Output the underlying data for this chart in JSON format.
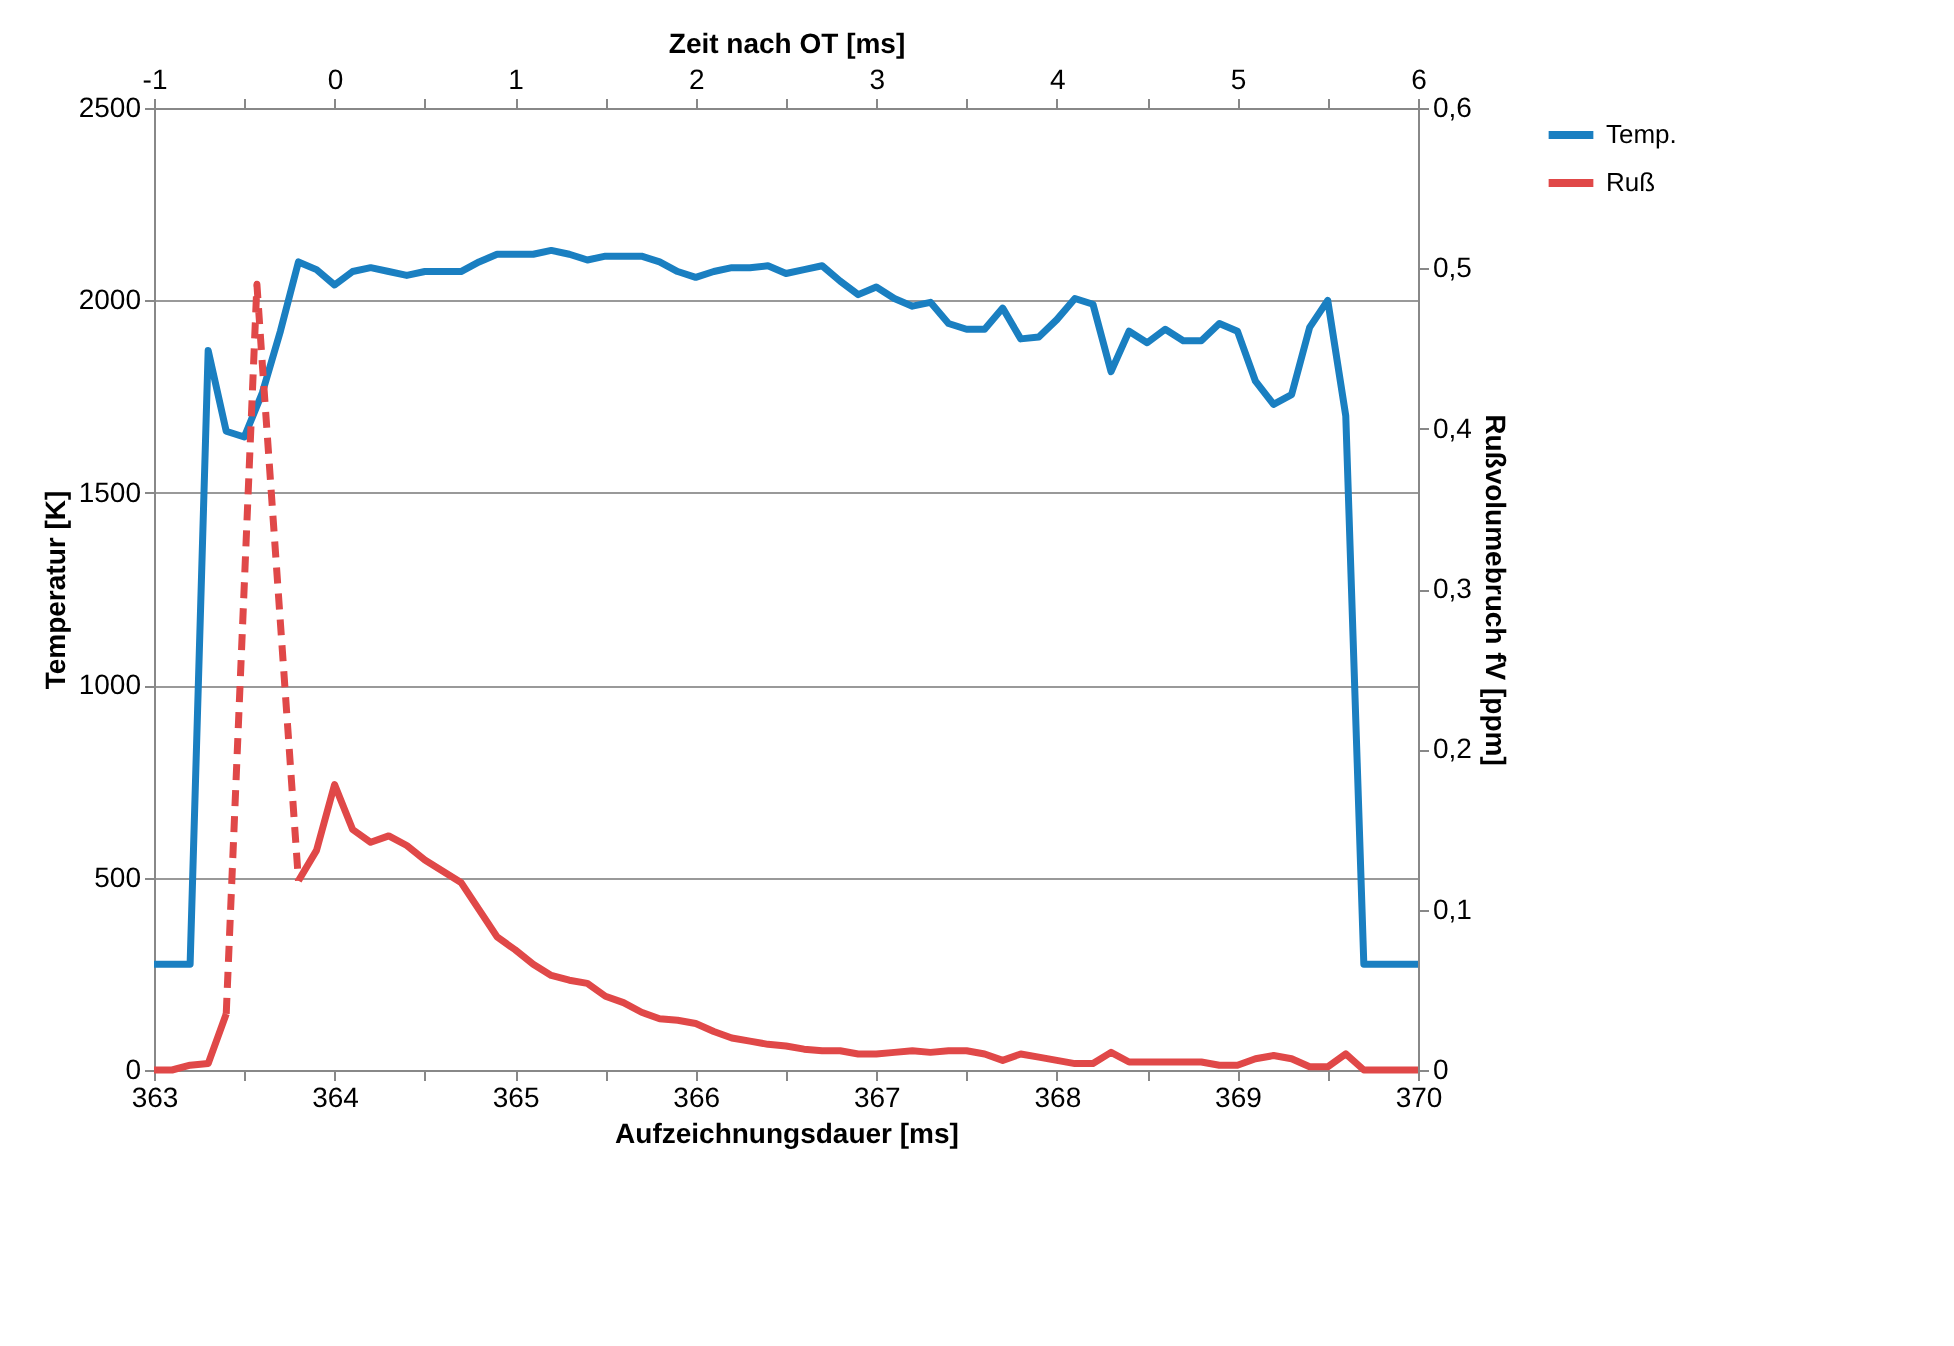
{
  "chart_data": {
    "type": "line",
    "xlabel": "Aufzeichnungsdauer  [ms]",
    "ylabel": "Temperatur [K]",
    "y2label": "Rußvolumebruch fV [ppm]",
    "x2label": "Zeit nach OT [ms]",
    "xlim": [
      363,
      370
    ],
    "xticks": [
      363,
      {
        "value": 363.5,
        "label": null
      },
      364,
      {
        "value": 364.5,
        "label": null
      },
      365,
      {
        "value": 365.5,
        "label": null
      },
      366,
      {
        "value": 366.5,
        "label": null
      },
      367,
      {
        "value": 367.5,
        "label": null
      },
      368,
      {
        "value": 368.5,
        "label": null
      },
      369,
      {
        "value": 369.5,
        "label": null
      },
      370
    ],
    "x2lim": [
      -1,
      6
    ],
    "x2ticks": [
      -1,
      {
        "value": -0.5,
        "label": null
      },
      0,
      {
        "value": 0.5,
        "label": null
      },
      1,
      {
        "value": 1.5,
        "label": null
      },
      2,
      {
        "value": 2.5,
        "label": null
      },
      3,
      {
        "value": 3.5,
        "label": null
      },
      4,
      {
        "value": 4.5,
        "label": null
      },
      5,
      {
        "value": 5.5,
        "label": null
      },
      6
    ],
    "ylim": [
      0,
      2500
    ],
    "yticks": [
      0,
      500,
      1000,
      1500,
      2000,
      2500
    ],
    "y2lim": [
      0,
      0.6
    ],
    "y2ticks": [
      0,
      {
        "value": 0.1,
        "label": "0,1"
      },
      {
        "value": 0.2,
        "label": "0,2"
      },
      {
        "value": 0.3,
        "label": "0,3"
      },
      {
        "value": 0.4,
        "label": "0,4"
      },
      {
        "value": 0.5,
        "label": "0,5"
      },
      {
        "value": 0.6,
        "label": "0,6"
      }
    ],
    "grid": "y",
    "legend": "right",
    "marker": "none",
    "series": [
      {
        "name": "Temp.",
        "color": "#1a7fc1",
        "line_style": "solid",
        "x": [
          363.0,
          363.1,
          363.2,
          363.3,
          363.4,
          363.5,
          363.6,
          363.7,
          363.8,
          363.9,
          364.0,
          364.1,
          364.2,
          364.3,
          364.4,
          364.5,
          364.6,
          364.7,
          364.8,
          364.9,
          365.0,
          365.1,
          365.2,
          365.3,
          365.4,
          365.5,
          365.6,
          365.7,
          365.8,
          365.9,
          366.0,
          366.1,
          366.2,
          366.3,
          366.4,
          366.5,
          366.6,
          366.7,
          366.8,
          366.9,
          367.0,
          367.1,
          367.2,
          367.3,
          367.4,
          367.5,
          367.6,
          367.7,
          367.8,
          367.9,
          368.0,
          368.1,
          368.2,
          368.3,
          368.4,
          368.5,
          368.6,
          368.7,
          368.8,
          368.9,
          369.0,
          369.1,
          369.2,
          369.3,
          369.4,
          369.5,
          369.6,
          369.7,
          369.8,
          369.9,
          370.0
        ],
        "values": [
          275,
          275,
          275,
          1870,
          1660,
          1645,
          1760,
          1920,
          2100,
          2080,
          2040,
          2075,
          2085,
          2075,
          2065,
          2075,
          2075,
          2075,
          2100,
          2120,
          2120,
          2120,
          2130,
          2120,
          2105,
          2115,
          2115,
          2115,
          2100,
          2075,
          2060,
          2075,
          2085,
          2085,
          2090,
          2070,
          2080,
          2090,
          2050,
          2015,
          2035,
          2005,
          1985,
          1995,
          1940,
          1925,
          1925,
          1980,
          1900,
          1905,
          1950,
          2005,
          1990,
          1815,
          1920,
          1890,
          1925,
          1895,
          1895,
          1940,
          1920,
          1790,
          1730,
          1755,
          1930,
          2000,
          1700,
          275,
          275,
          275,
          275
        ]
      },
      {
        "name": "Ruß",
        "color": "#e04848",
        "axis": "y2",
        "line_style": "solid",
        "x": [
          363.0,
          363.1,
          363.2,
          363.3,
          363.4,
          363.5,
          363.6,
          363.7,
          363.8,
          363.9,
          364.0,
          364.1,
          364.2,
          364.3,
          364.4,
          364.5,
          364.6,
          364.7,
          364.8,
          364.9,
          365.0,
          365.1,
          365.2,
          365.3,
          365.4,
          365.5,
          365.6,
          365.7,
          365.8,
          365.9,
          366.0,
          366.1,
          366.2,
          366.3,
          366.4,
          366.5,
          366.6,
          366.7,
          366.8,
          366.9,
          367.0,
          367.1,
          367.2,
          367.3,
          367.4,
          367.5,
          367.6,
          367.7,
          367.8,
          367.9,
          368.0,
          368.1,
          368.2,
          368.3,
          368.4,
          368.5,
          368.6,
          368.7,
          368.8,
          368.9,
          369.0,
          369.1,
          369.2,
          369.3,
          369.4,
          369.5,
          369.6,
          369.7,
          369.8,
          369.9,
          370.0
        ],
        "values": [
          0,
          0,
          0.003,
          0.004,
          0.035,
          null,
          null,
          null,
          0.118,
          0.137,
          0.178,
          0.15,
          0.142,
          0.146,
          0.14,
          0.131,
          0.124,
          0.117,
          0.1,
          0.083,
          0.075,
          0.066,
          0.059,
          0.056,
          0.054,
          0.046,
          0.042,
          0.036,
          0.032,
          0.031,
          0.029,
          0.024,
          0.02,
          0.018,
          0.016,
          0.015,
          0.013,
          0.012,
          0.012,
          0.01,
          0.01,
          0.011,
          0.012,
          0.011,
          0.012,
          0.012,
          0.01,
          0.006,
          0.01,
          0.008,
          0.006,
          0.004,
          0.004,
          0.011,
          0.005,
          0.005,
          0.005,
          0.005,
          0.005,
          0.003,
          0.003,
          0.007,
          0.009,
          0.007,
          0.002,
          0.002,
          0.01,
          0,
          0,
          0,
          0
        ]
      },
      {
        "color": "#e04848",
        "axis": "y2",
        "line_style": "dashed",
        "x": [
          363.4,
          363.57,
          363.6,
          363.8
        ],
        "values": [
          0.035,
          0.49,
          0.44,
          0.118
        ]
      }
    ]
  }
}
